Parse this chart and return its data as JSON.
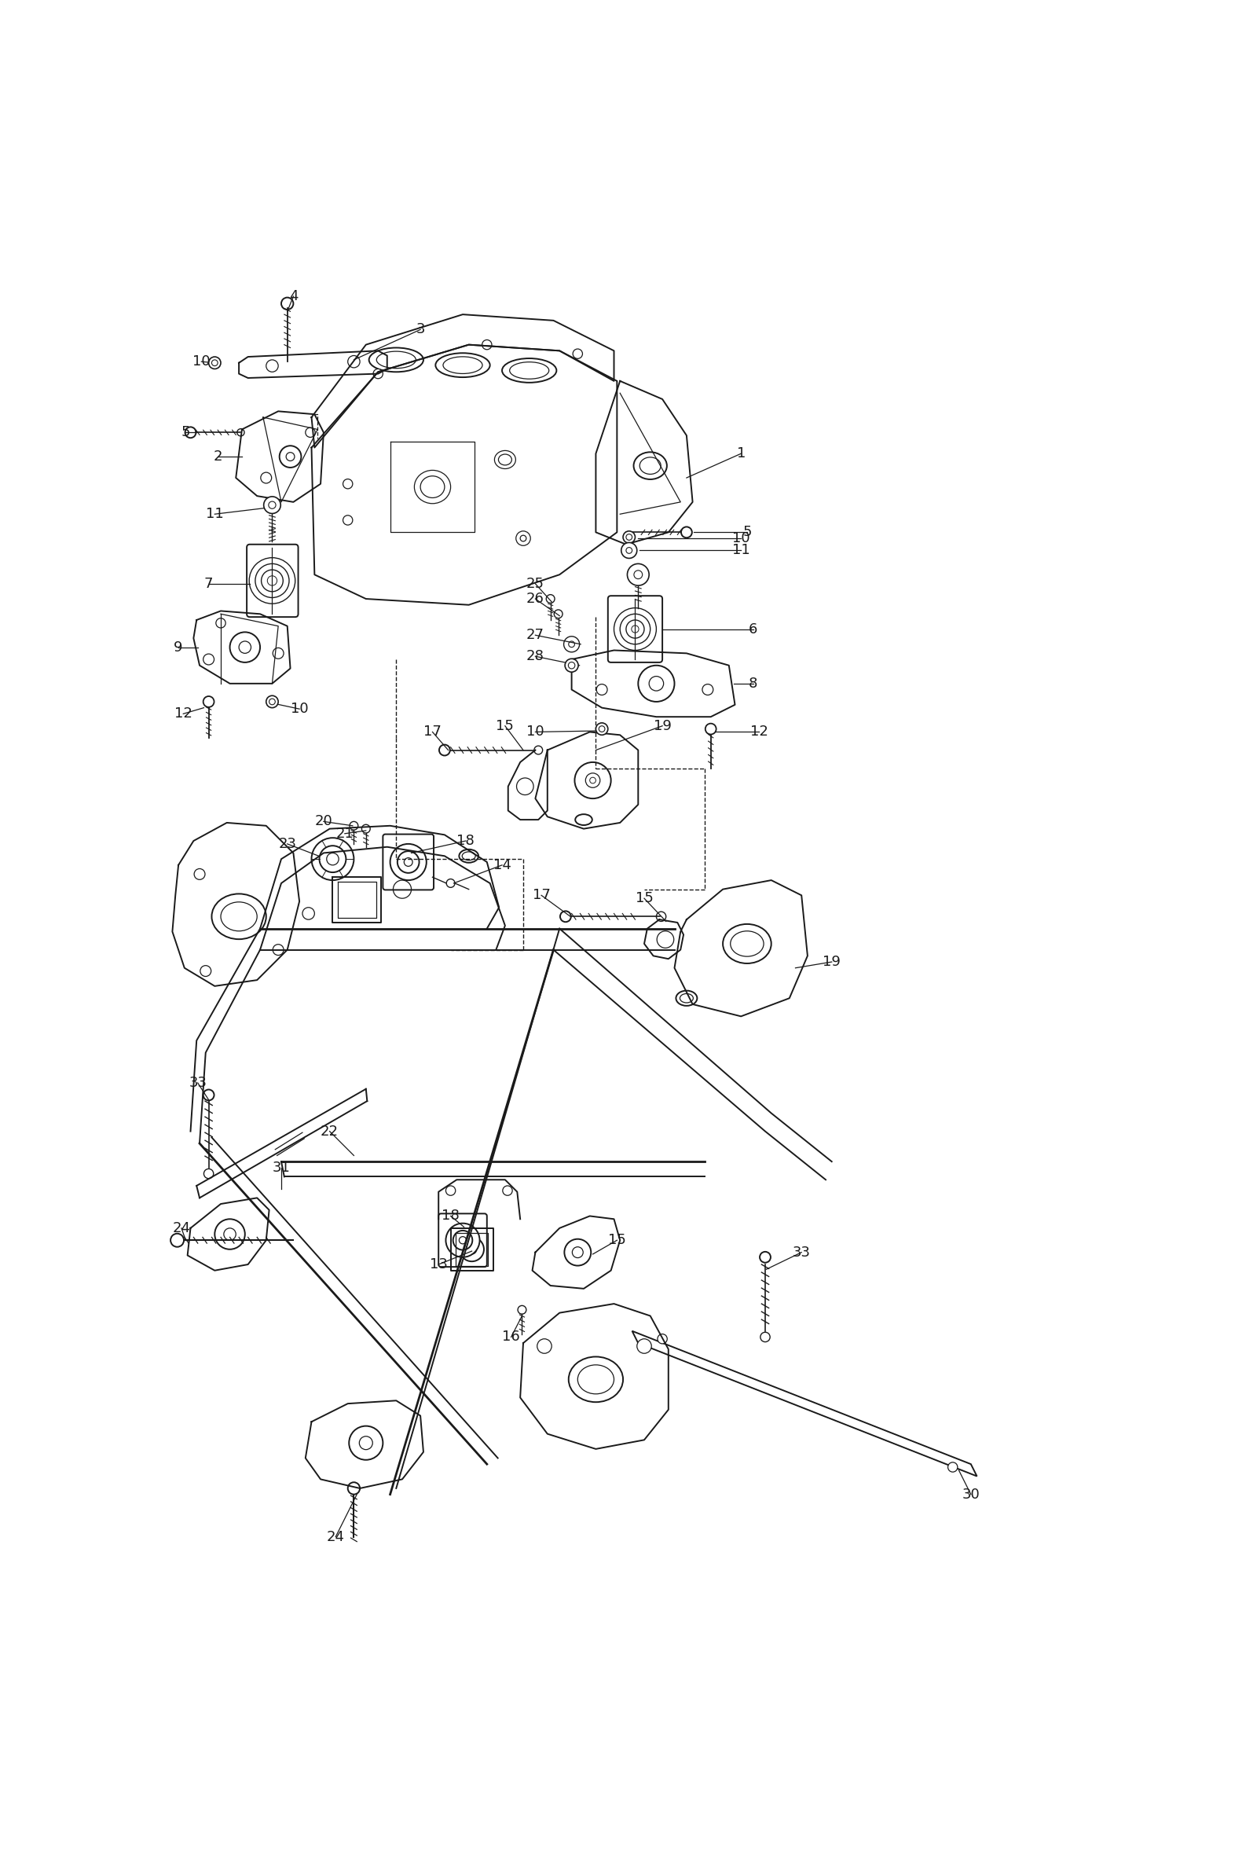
{
  "background_color": "#ffffff",
  "line_color": "#1a1a1a",
  "fig_width": 16.0,
  "fig_height": 23.72,
  "lw_main": 1.4,
  "lw_thin": 0.9,
  "lw_thick": 2.0
}
